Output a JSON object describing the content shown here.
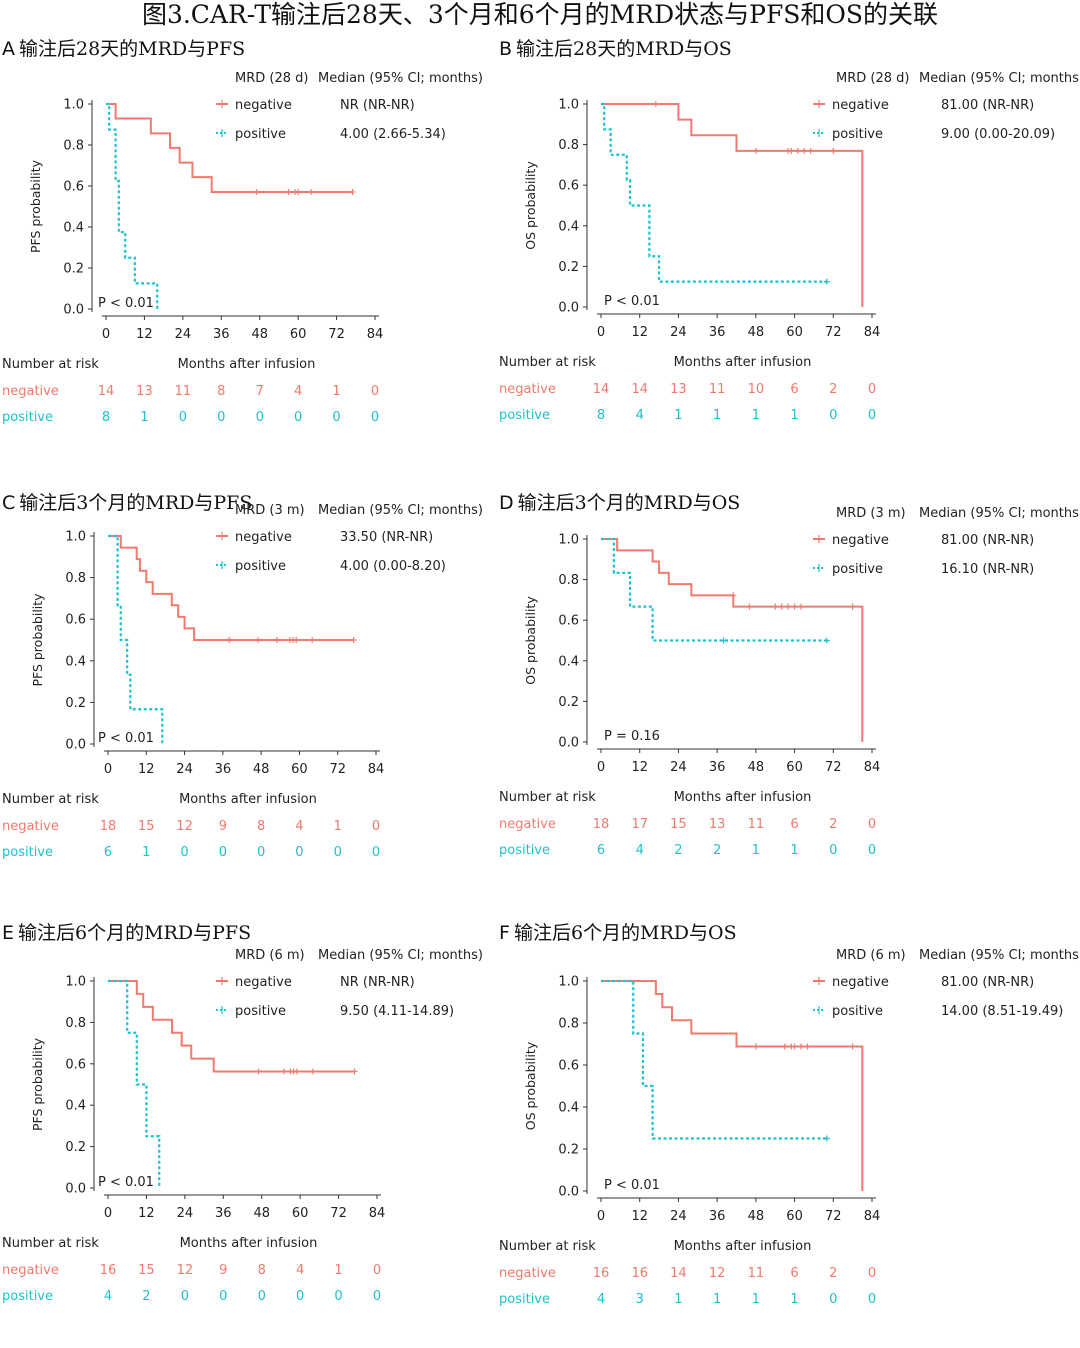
{
  "figure_title": "图3.CAR-T输注后28天、3个月和6个月的MRD状态与PFS和OS的关联",
  "colors": {
    "negative": "#f07a6d",
    "positive": "#1ec1cf",
    "axis": "#333333"
  },
  "chart_data": [
    {
      "type": "line",
      "letter": "A",
      "title": "输注后28天的MRD与PFS",
      "ylabel": "PFS probability",
      "xlabel": "Months after infusion",
      "xticks": [
        0,
        12,
        24,
        36,
        48,
        60,
        72,
        84
      ],
      "yticks": [
        "0.0",
        "0.2",
        "0.4",
        "0.6",
        "0.8",
        "1.0"
      ],
      "xlim": [
        0,
        84
      ],
      "ylim": [
        0,
        1
      ],
      "legend_group": "MRD (28 d)",
      "legend_median": "Median (95% CI; months)",
      "pvalue": "P < 0.01",
      "series": [
        {
          "name": "negative",
          "median": "NR (NR-NR)",
          "steps": [
            [
              0,
              1.0
            ],
            [
              3,
              0.929
            ],
            [
              14,
              0.857
            ],
            [
              20,
              0.786
            ],
            [
              23,
              0.714
            ],
            [
              27,
              0.643
            ],
            [
              33,
              0.571
            ],
            [
              77,
              0.571
            ]
          ],
          "censors": [
            [
              47,
              0.571
            ],
            [
              57,
              0.571
            ],
            [
              59,
              0.571
            ],
            [
              60,
              0.571
            ],
            [
              64,
              0.571
            ],
            [
              77,
              0.571
            ]
          ],
          "risk": [
            "14",
            "13",
            "11",
            "8",
            "7",
            "4",
            "1",
            "0"
          ]
        },
        {
          "name": "positive",
          "median": "4.00 (2.66-5.34)",
          "steps": [
            [
              0,
              1.0
            ],
            [
              1,
              0.875
            ],
            [
              3,
              0.625
            ],
            [
              4,
              0.375
            ],
            [
              6,
              0.25
            ],
            [
              9,
              0.125
            ],
            [
              16,
              0.0
            ]
          ],
          "censors": [],
          "risk": [
            "8",
            "1",
            "0",
            "0",
            "0",
            "0",
            "0",
            "0"
          ]
        }
      ],
      "risk_title": "Number at risk"
    },
    {
      "type": "line",
      "letter": "B",
      "title": "输注后28天的MRD与OS",
      "ylabel": "OS probability",
      "xlabel": "Months after infusion",
      "xticks": [
        0,
        12,
        24,
        36,
        48,
        60,
        72,
        84
      ],
      "yticks": [
        "0.0",
        "0.2",
        "0.4",
        "0.6",
        "0.8",
        "1.0"
      ],
      "xlim": [
        0,
        84
      ],
      "ylim": [
        0,
        1
      ],
      "legend_group": "MRD (28 d)",
      "legend_median": "Median (95% CI; months)",
      "pvalue": "P < 0.01",
      "series": [
        {
          "name": "negative",
          "median": "81.00 (NR-NR)",
          "steps": [
            [
              0,
              1.0
            ],
            [
              24,
              0.923
            ],
            [
              28,
              0.846
            ],
            [
              42,
              0.769
            ],
            [
              81,
              0.0
            ]
          ],
          "censors": [
            [
              17,
              1.0
            ],
            [
              48,
              0.769
            ],
            [
              58,
              0.769
            ],
            [
              59,
              0.769
            ],
            [
              61,
              0.769
            ],
            [
              63,
              0.769
            ],
            [
              65,
              0.769
            ],
            [
              72,
              0.769
            ]
          ],
          "risk": [
            "14",
            "14",
            "13",
            "11",
            "10",
            "6",
            "2",
            "0"
          ]
        },
        {
          "name": "positive",
          "median": "9.00 (0.00-20.09)",
          "steps": [
            [
              0,
              1.0
            ],
            [
              1,
              0.875
            ],
            [
              3,
              0.75
            ],
            [
              8,
              0.625
            ],
            [
              9,
              0.5
            ],
            [
              15,
              0.25
            ],
            [
              18,
              0.125
            ],
            [
              70,
              0.125
            ]
          ],
          "censors": [
            [
              70,
              0.125
            ]
          ],
          "risk": [
            "8",
            "4",
            "1",
            "1",
            "1",
            "1",
            "0",
            "0"
          ]
        }
      ],
      "risk_title": "Number at risk"
    },
    {
      "type": "line",
      "letter": "C",
      "title": "输注后3个月的MRD与PFS",
      "ylabel": "PFS probability",
      "xlabel": "Months after infusion",
      "xticks": [
        0,
        12,
        24,
        36,
        48,
        60,
        72,
        84
      ],
      "yticks": [
        "0.0",
        "0.2",
        "0.4",
        "0.6",
        "0.8",
        "1.0"
      ],
      "xlim": [
        0,
        84
      ],
      "ylim": [
        0,
        1
      ],
      "legend_group": "MRD (3 m)",
      "legend_median": "Median (95% CI; months)",
      "pvalue": "P < 0.01",
      "series": [
        {
          "name": "negative",
          "median": "33.50 (NR-NR)",
          "steps": [
            [
              0,
              1.0
            ],
            [
              4,
              0.944
            ],
            [
              9,
              0.889
            ],
            [
              10,
              0.833
            ],
            [
              12,
              0.778
            ],
            [
              14,
              0.722
            ],
            [
              20,
              0.667
            ],
            [
              22,
              0.611
            ],
            [
              24,
              0.556
            ],
            [
              27,
              0.5
            ],
            [
              77,
              0.5
            ]
          ],
          "censors": [
            [
              38,
              0.5
            ],
            [
              47,
              0.5
            ],
            [
              53,
              0.5
            ],
            [
              57,
              0.5
            ],
            [
              58,
              0.5
            ],
            [
              59,
              0.5
            ],
            [
              64,
              0.5
            ],
            [
              77,
              0.5
            ]
          ],
          "risk": [
            "18",
            "15",
            "12",
            "9",
            "8",
            "4",
            "1",
            "0"
          ]
        },
        {
          "name": "positive",
          "median": "4.00 (0.00-8.20)",
          "steps": [
            [
              0,
              1.0
            ],
            [
              3,
              0.667
            ],
            [
              4,
              0.5
            ],
            [
              6,
              0.333
            ],
            [
              7,
              0.167
            ],
            [
              17,
              0.0
            ]
          ],
          "censors": [],
          "risk": [
            "6",
            "1",
            "0",
            "0",
            "0",
            "0",
            "0",
            "0"
          ]
        }
      ],
      "risk_title": "Number at risk"
    },
    {
      "type": "line",
      "letter": "D",
      "title": "输注后3个月的MRD与OS",
      "ylabel": "OS probability",
      "xlabel": "Months after infusion",
      "xticks": [
        0,
        12,
        24,
        36,
        48,
        60,
        72,
        84
      ],
      "yticks": [
        "0.0",
        "0.2",
        "0.4",
        "0.6",
        "0.8",
        "1.0"
      ],
      "xlim": [
        0,
        84
      ],
      "ylim": [
        0,
        1
      ],
      "legend_group": "MRD (3 m)",
      "legend_median": "Median (95% CI; months)",
      "pvalue": "P = 0.16",
      "series": [
        {
          "name": "negative",
          "median": "81.00 (NR-NR)",
          "steps": [
            [
              0,
              1.0
            ],
            [
              5,
              0.944
            ],
            [
              16,
              0.889
            ],
            [
              18,
              0.833
            ],
            [
              21,
              0.778
            ],
            [
              28,
              0.722
            ],
            [
              41,
              0.667
            ],
            [
              81,
              0.0
            ]
          ],
          "censors": [
            [
              41,
              0.722
            ],
            [
              46,
              0.667
            ],
            [
              54,
              0.667
            ],
            [
              56,
              0.667
            ],
            [
              58,
              0.667
            ],
            [
              60,
              0.667
            ],
            [
              62,
              0.667
            ],
            [
              78,
              0.667
            ]
          ],
          "risk": [
            "18",
            "17",
            "15",
            "13",
            "11",
            "6",
            "2",
            "0"
          ]
        },
        {
          "name": "positive",
          "median": "16.10 (NR-NR)",
          "steps": [
            [
              0,
              1.0
            ],
            [
              4,
              0.833
            ],
            [
              9,
              0.667
            ],
            [
              16,
              0.5
            ],
            [
              70,
              0.5
            ]
          ],
          "censors": [
            [
              38,
              0.5
            ],
            [
              70,
              0.5
            ]
          ],
          "risk": [
            "6",
            "4",
            "2",
            "2",
            "1",
            "1",
            "0",
            "0"
          ]
        }
      ],
      "risk_title": "Number at risk"
    },
    {
      "type": "line",
      "letter": "E",
      "title": "输注后6个月的MRD与PFS",
      "ylabel": "PFS probability",
      "xlabel": "Months after infusion",
      "xticks": [
        0,
        12,
        24,
        36,
        48,
        60,
        72,
        84
      ],
      "yticks": [
        "0.0",
        "0.2",
        "0.4",
        "0.6",
        "0.8",
        "1.0"
      ],
      "xlim": [
        0,
        84
      ],
      "ylim": [
        0,
        1
      ],
      "legend_group": "MRD (6 m)",
      "legend_median": "Median (95% CI; months)",
      "pvalue": "P < 0.01",
      "series": [
        {
          "name": "negative",
          "median": "NR (NR-NR)",
          "steps": [
            [
              0,
              1.0
            ],
            [
              9,
              0.938
            ],
            [
              11,
              0.875
            ],
            [
              14,
              0.813
            ],
            [
              20,
              0.75
            ],
            [
              23,
              0.688
            ],
            [
              26,
              0.625
            ],
            [
              33,
              0.563
            ],
            [
              77,
              0.563
            ]
          ],
          "censors": [
            [
              47,
              0.563
            ],
            [
              55,
              0.563
            ],
            [
              57,
              0.563
            ],
            [
              58,
              0.563
            ],
            [
              59,
              0.563
            ],
            [
              64,
              0.563
            ],
            [
              77,
              0.563
            ]
          ],
          "risk": [
            "16",
            "15",
            "12",
            "9",
            "8",
            "4",
            "1",
            "0"
          ]
        },
        {
          "name": "positive",
          "median": "9.50 (4.11-14.89)",
          "steps": [
            [
              0,
              1.0
            ],
            [
              6,
              0.75
            ],
            [
              9,
              0.5
            ],
            [
              12,
              0.25
            ],
            [
              16,
              0.0
            ]
          ],
          "censors": [],
          "risk": [
            "4",
            "2",
            "0",
            "0",
            "0",
            "0",
            "0",
            "0"
          ]
        }
      ],
      "risk_title": "Number at risk"
    },
    {
      "type": "line",
      "letter": "F",
      "title": "输注后6个月的MRD与OS",
      "ylabel": "OS probability",
      "xlabel": "Months after infusion",
      "xticks": [
        0,
        12,
        24,
        36,
        48,
        60,
        72,
        84
      ],
      "yticks": [
        "0.0",
        "0.2",
        "0.4",
        "0.6",
        "0.8",
        "1.0"
      ],
      "xlim": [
        0,
        84
      ],
      "ylim": [
        0,
        1
      ],
      "legend_group": "MRD (6 m)",
      "legend_median": "Median (95% CI; months)",
      "pvalue": "P < 0.01",
      "series": [
        {
          "name": "negative",
          "median": "81.00 (NR-NR)",
          "steps": [
            [
              0,
              1.0
            ],
            [
              17,
              0.938
            ],
            [
              19,
              0.875
            ],
            [
              22,
              0.813
            ],
            [
              28,
              0.75
            ],
            [
              42,
              0.688
            ],
            [
              81,
              0.0
            ]
          ],
          "censors": [
            [
              48,
              0.688
            ],
            [
              57,
              0.688
            ],
            [
              59,
              0.688
            ],
            [
              60,
              0.688
            ],
            [
              62,
              0.688
            ],
            [
              64,
              0.688
            ],
            [
              78,
              0.688
            ]
          ],
          "risk": [
            "16",
            "16",
            "14",
            "12",
            "11",
            "6",
            "2",
            "0"
          ]
        },
        {
          "name": "positive",
          "median": "14.00 (8.51-19.49)",
          "steps": [
            [
              0,
              1.0
            ],
            [
              10,
              0.75
            ],
            [
              13,
              0.5
            ],
            [
              16,
              0.25
            ],
            [
              70,
              0.25
            ]
          ],
          "censors": [
            [
              70,
              0.25
            ]
          ],
          "risk": [
            "4",
            "3",
            "1",
            "1",
            "1",
            "1",
            "0",
            "0"
          ]
        }
      ],
      "risk_title": "Number at risk"
    }
  ]
}
